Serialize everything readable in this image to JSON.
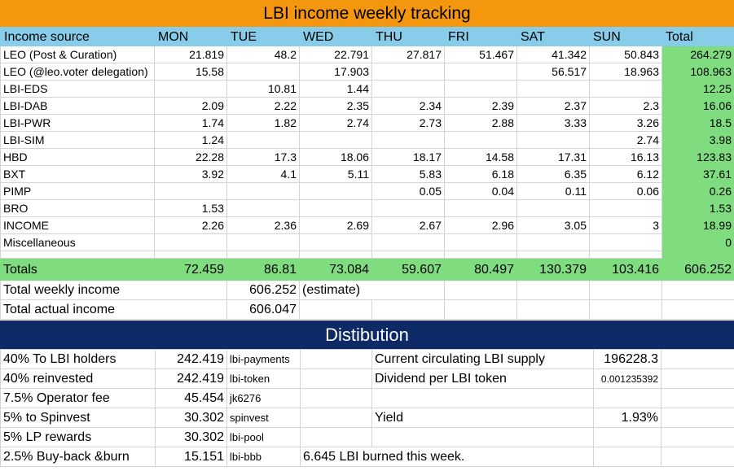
{
  "title": "LBI income weekly tracking",
  "columns": [
    "Income source",
    "MON",
    "TUE",
    "WED",
    "THU",
    "FRI",
    "SAT",
    "SUN",
    "Total"
  ],
  "rows": [
    {
      "source": "LEO (Post & Curation)",
      "values": [
        "21.819",
        "48.2",
        "22.791",
        "27.817",
        "51.467",
        "41.342",
        "50.843"
      ],
      "total": "264.279"
    },
    {
      "source": "LEO (@leo.voter delegation)",
      "values": [
        "15.58",
        "",
        "17.903",
        "",
        "",
        "56.517",
        "18.963"
      ],
      "total": "108.963"
    },
    {
      "source": "LBI-EDS",
      "values": [
        "",
        "10.81",
        "1.44",
        "",
        "",
        "",
        ""
      ],
      "total": "12.25"
    },
    {
      "source": "LBI-DAB",
      "values": [
        "2.09",
        "2.22",
        "2.35",
        "2.34",
        "2.39",
        "2.37",
        "2.3"
      ],
      "total": "16.06"
    },
    {
      "source": "LBI-PWR",
      "values": [
        "1.74",
        "1.82",
        "2.74",
        "2.73",
        "2.88",
        "3.33",
        "3.26"
      ],
      "total": "18.5"
    },
    {
      "source": "LBI-SIM",
      "values": [
        "1.24",
        "",
        "",
        "",
        "",
        "",
        "2.74"
      ],
      "total": "3.98"
    },
    {
      "source": "HBD",
      "values": [
        "22.28",
        "17.3",
        "18.06",
        "18.17",
        "14.58",
        "17.31",
        "16.13"
      ],
      "total": "123.83"
    },
    {
      "source": "BXT",
      "values": [
        "3.92",
        "4.1",
        "5.11",
        "5.83",
        "6.18",
        "6.35",
        "6.12"
      ],
      "total": "37.61"
    },
    {
      "source": "PIMP",
      "values": [
        "",
        "",
        "",
        "0.05",
        "0.04",
        "0.11",
        "0.06"
      ],
      "total": "0.26"
    },
    {
      "source": "BRO",
      "values": [
        "1.53",
        "",
        "",
        "",
        "",
        "",
        ""
      ],
      "total": "1.53"
    },
    {
      "source": "INCOME",
      "values": [
        "2.26",
        "2.36",
        "2.69",
        "2.67",
        "2.96",
        "3.05",
        "3"
      ],
      "total": "18.99"
    },
    {
      "source": "Miscellaneous",
      "values": [
        "",
        "",
        "",
        "",
        "",
        "",
        ""
      ],
      "total": "0"
    }
  ],
  "totals": {
    "label": "Totals",
    "values": [
      "72.459",
      "86.81",
      "73.084",
      "59.607",
      "80.497",
      "130.379",
      "103.416"
    ],
    "total": "606.252"
  },
  "weekly_income": {
    "label": "Total weekly income",
    "value": "606.252",
    "note": "(estimate)"
  },
  "actual_income": {
    "label": "Total actual income",
    "value": "606.047"
  },
  "distribution_title": "Distibution",
  "distribution": [
    {
      "label": "40% To LBI holders",
      "amount": "242.419",
      "account": "lbi-payments"
    },
    {
      "label": "40% reinvested",
      "amount": "242.419",
      "account": "lbi-token"
    },
    {
      "label": "7.5% Operator fee",
      "amount": "45.454",
      "account": "jk6276"
    },
    {
      "label": "5% to Spinvest",
      "amount": "30.302",
      "account": "spinvest"
    },
    {
      "label": "5% LP rewards",
      "amount": "30.302",
      "account": "lbi-pool"
    },
    {
      "label": "2.5% Buy-back &burn",
      "amount": "15.151",
      "account": "lbi-bbb"
    }
  ],
  "supply": {
    "label": "Current circulating LBI supply",
    "value": "196228.3"
  },
  "dividend": {
    "label": "Dividend per LBI token",
    "value": "0.001235392"
  },
  "yield": {
    "label": "Yield",
    "value": "1.93%"
  },
  "burn_note": "6.645 LBI burned this week.",
  "colors": {
    "title_band": "#f5960f",
    "header_band": "#87cdea",
    "total_green": "#7fdd80",
    "distribution_band": "#0d2a66"
  }
}
